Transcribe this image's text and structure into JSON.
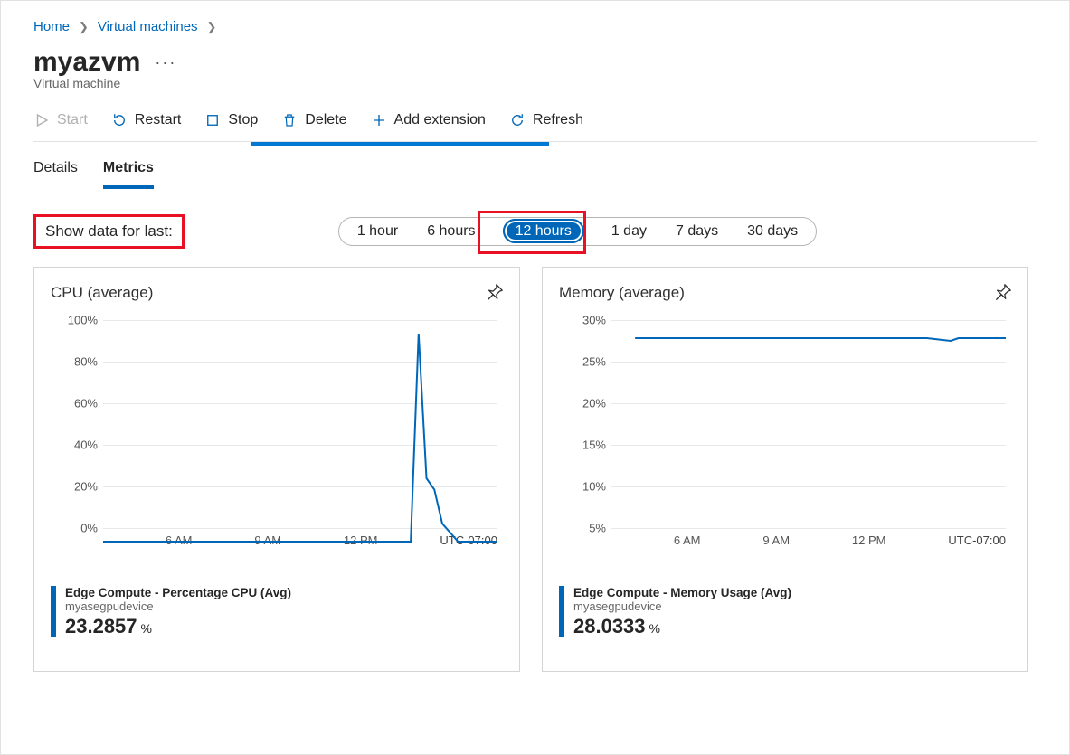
{
  "breadcrumb": {
    "home": "Home",
    "vms": "Virtual machines"
  },
  "header": {
    "title": "myazvm",
    "subtitle": "Virtual machine"
  },
  "toolbar": {
    "start": "Start",
    "restart": "Restart",
    "stop": "Stop",
    "delete": "Delete",
    "add_ext": "Add extension",
    "refresh": "Refresh"
  },
  "tabs": {
    "details": "Details",
    "metrics": "Metrics"
  },
  "filter": {
    "label": "Show data for last:",
    "options": [
      "1 hour",
      "6 hours",
      "12 hours",
      "1 day",
      "7 days",
      "30 days"
    ],
    "selected_index": 2
  },
  "charts": {
    "cpu": {
      "title": "CPU (average)",
      "type": "line",
      "y_ticks": [
        "100%",
        "80%",
        "60%",
        "40%",
        "20%",
        "0%"
      ],
      "ylim": [
        0,
        100
      ],
      "x_ticks": [
        "6 AM",
        "9 AM",
        "12 PM",
        "UTC-07:00"
      ],
      "line_color": "#0067b8",
      "grid_color": "#e8e8e8",
      "points_pct_x": [
        0,
        5,
        10,
        15,
        20,
        30,
        40,
        50,
        60,
        70,
        78,
        80,
        82,
        84,
        86,
        90,
        100
      ],
      "points_val": [
        2,
        2,
        2,
        2,
        2,
        2,
        2,
        2,
        2,
        2,
        2,
        94,
        30,
        25,
        10,
        2,
        2
      ],
      "stat_label": "Edge Compute - Percentage CPU (Avg)",
      "stat_sub": "myasegpudevice",
      "stat_value": "23.2857",
      "stat_unit": "%"
    },
    "mem": {
      "title": "Memory (average)",
      "type": "line",
      "y_ticks": [
        "30%",
        "25%",
        "20%",
        "15%",
        "10%",
        "5%"
      ],
      "ylim": [
        5,
        30
      ],
      "x_ticks": [
        "6 AM",
        "9 AM",
        "12 PM",
        "UTC-07:00"
      ],
      "line_color": "#0067b8",
      "grid_color": "#e8e8e8",
      "points_pct_x": [
        6,
        20,
        40,
        60,
        80,
        86,
        88,
        90,
        100
      ],
      "points_val": [
        28,
        28,
        28,
        28,
        28,
        27.7,
        28,
        28,
        28
      ],
      "stat_label": "Edge Compute - Memory Usage (Avg)",
      "stat_sub": "myasegpudevice",
      "stat_value": "28.0333",
      "stat_unit": "%"
    }
  },
  "colors": {
    "accent": "#0067b8",
    "highlight": "#e81123"
  }
}
